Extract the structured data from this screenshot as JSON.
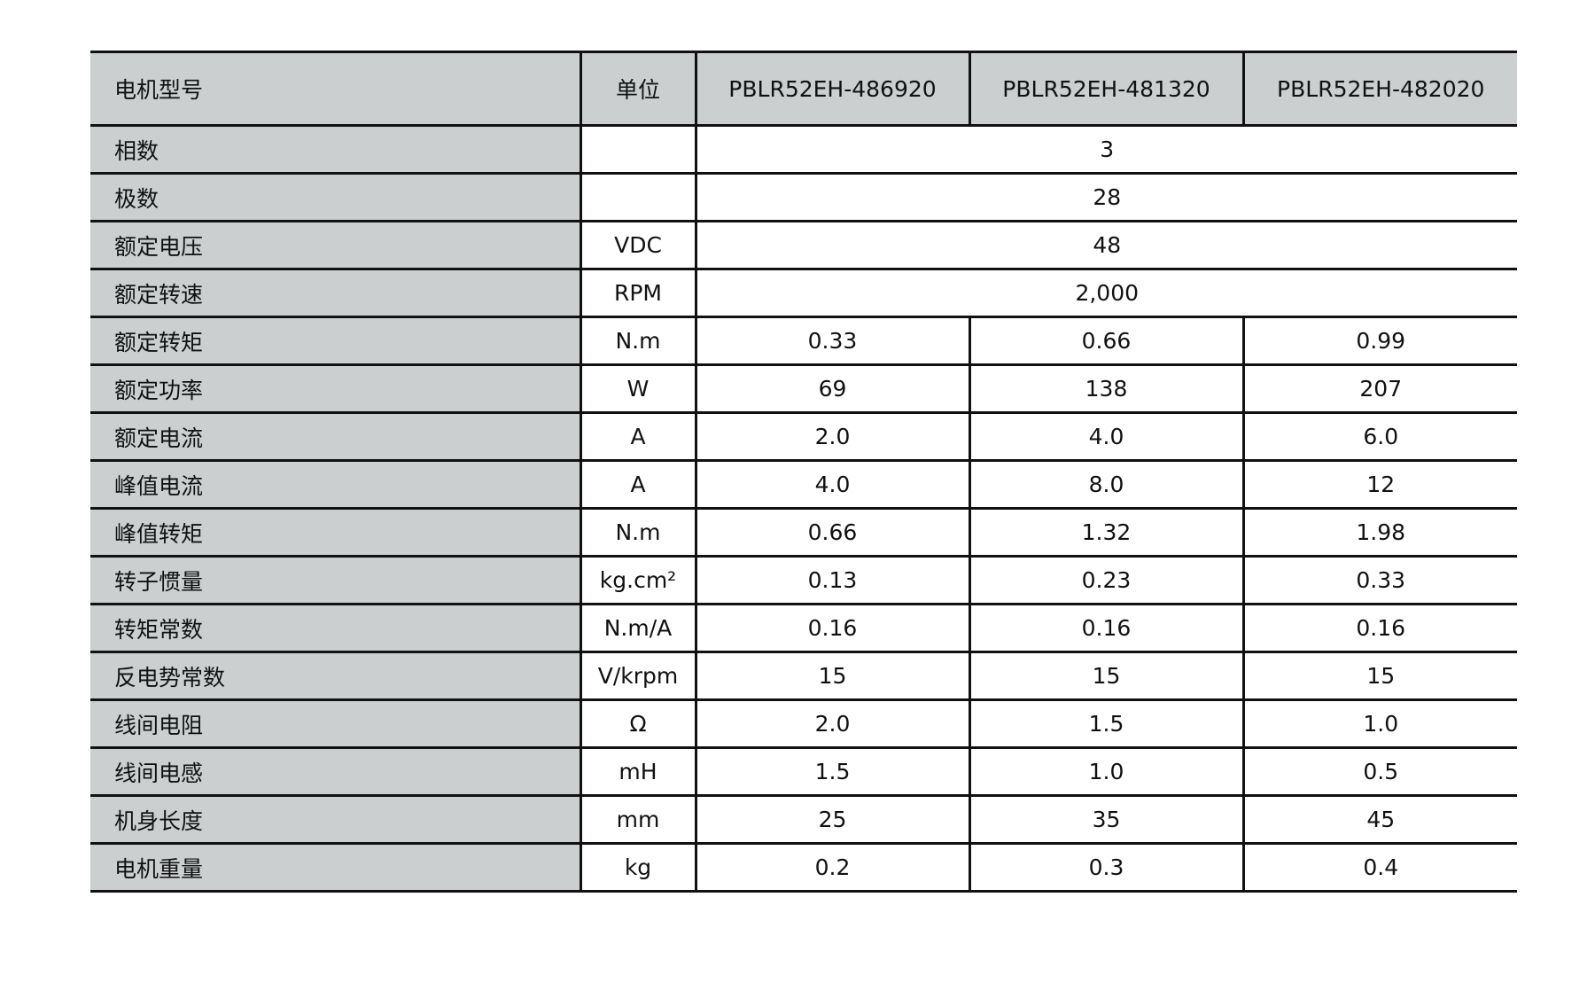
{
  "header": {
    "label": "电机型号",
    "unit": "单位",
    "models": [
      "PBLR52EH-486920",
      "PBLR52EH-481320",
      "PBLR52EH-482020"
    ]
  },
  "rows": [
    {
      "label": "相数",
      "unit": "",
      "values": [
        "3"
      ]
    },
    {
      "label": "极数",
      "unit": "",
      "values": [
        "28"
      ]
    },
    {
      "label": "额定电压",
      "unit": "VDC",
      "values": [
        "48"
      ]
    },
    {
      "label": "额定转速",
      "unit": "RPM",
      "values": [
        "2,000"
      ]
    },
    {
      "label": "额定转矩",
      "unit": "N.m",
      "values": [
        "0.33",
        "0.66",
        "0.99"
      ]
    },
    {
      "label": "额定功率",
      "unit": "W",
      "values": [
        "69",
        "138",
        "207"
      ]
    },
    {
      "label": "额定电流",
      "unit": "A",
      "values": [
        "2.0",
        "4.0",
        "6.0"
      ]
    },
    {
      "label": "峰值电流",
      "unit": "A",
      "values": [
        "4.0",
        "8.0",
        "12"
      ]
    },
    {
      "label": "峰值转矩",
      "unit": "N.m",
      "values": [
        "0.66",
        "1.32",
        "1.98"
      ]
    },
    {
      "label": "转子惯量",
      "unit": "kg.cm²",
      "values": [
        "0.13",
        "0.23",
        "0.33"
      ]
    },
    {
      "label": "转矩常数",
      "unit": "N.m/A",
      "values": [
        "0.16",
        "0.16",
        "0.16"
      ]
    },
    {
      "label": "反电势常数",
      "unit": "V/krpm",
      "values": [
        "15",
        "15",
        "15"
      ]
    },
    {
      "label": "线间电阻",
      "unit": "Ω",
      "values": [
        "2.0",
        "1.5",
        "1.0"
      ]
    },
    {
      "label": "线间电感",
      "unit": "mH",
      "values": [
        "1.5",
        "1.0",
        "0.5"
      ]
    },
    {
      "label": "机身长度",
      "unit": "mm",
      "values": [
        "25",
        "35",
        "45"
      ]
    },
    {
      "label": "电机重量",
      "unit": "kg",
      "values": [
        "0.2",
        "0.3",
        "0.4"
      ]
    }
  ],
  "colors": {
    "label_bg": "#cbcfd0",
    "border": "#111111"
  }
}
